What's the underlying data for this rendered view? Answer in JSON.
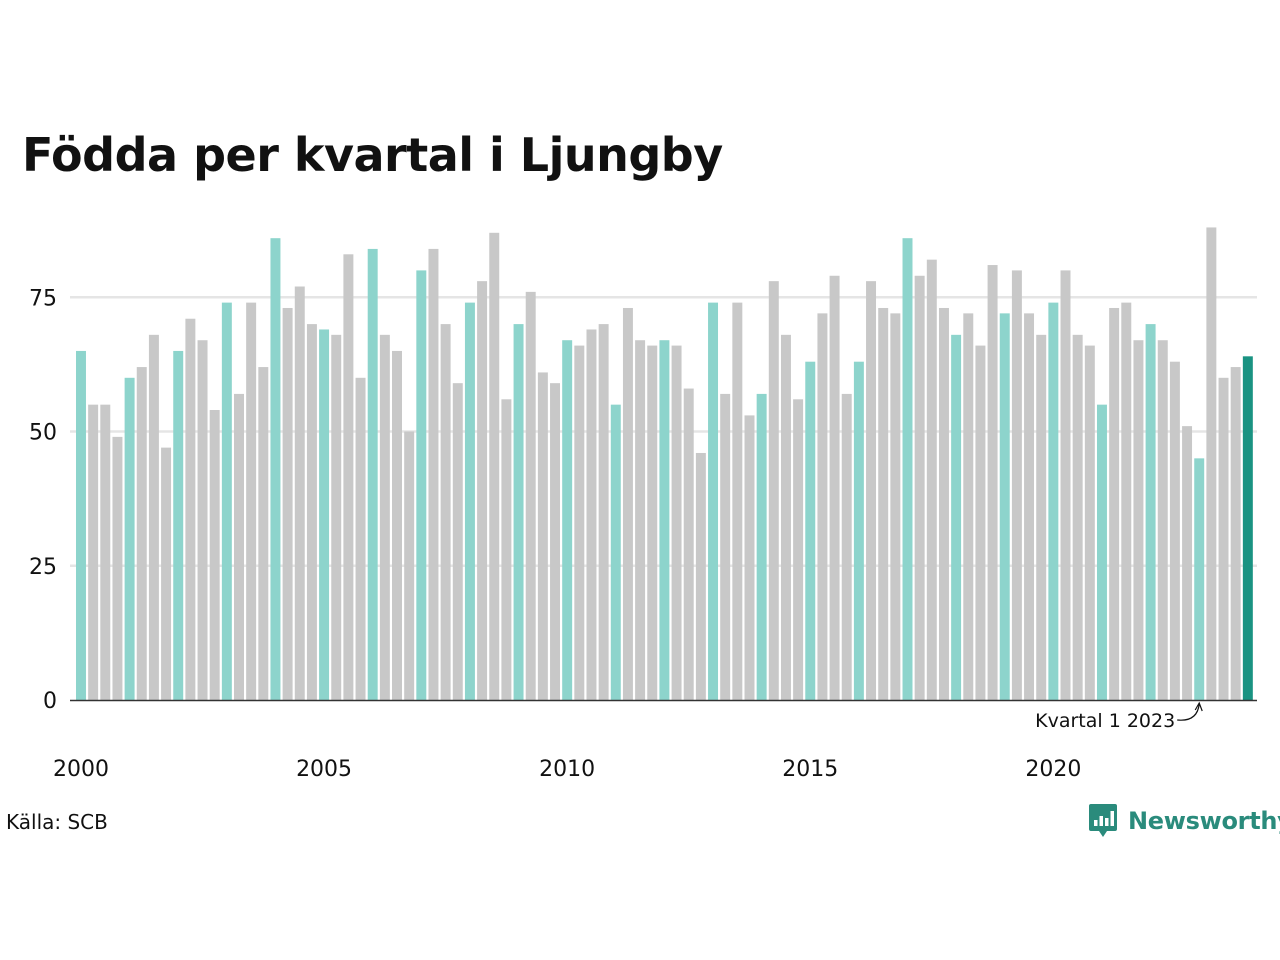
{
  "title": "Födda per kvartal i Ljungby",
  "source": "Källa: SCB",
  "brand": {
    "name": "Newsworthy",
    "icon": "newsworthy-logo-icon"
  },
  "colors": {
    "q1": "#8dd4cc",
    "other": "#c8c8c8",
    "latest": "#1a9382",
    "grid": "#e5e5e5",
    "axis": "#333333"
  },
  "chart_data": {
    "type": "bar",
    "title": "Födda per kvartal i Ljungby",
    "x_start": {
      "year": 2000,
      "quarter": 1
    },
    "x_ticks": [
      "2000",
      "2005",
      "2010",
      "2015",
      "2020"
    ],
    "y_ticks": [
      0,
      25,
      50,
      75
    ],
    "ylim": [
      0,
      90
    ],
    "grid": true,
    "highlight": "Q1 of each year; latest bar darker",
    "values": [
      65,
      55,
      55,
      49,
      60,
      62,
      68,
      47,
      65,
      71,
      67,
      54,
      74,
      57,
      74,
      62,
      86,
      73,
      77,
      70,
      69,
      68,
      83,
      60,
      84,
      68,
      65,
      50,
      80,
      84,
      70,
      59,
      74,
      78,
      87,
      56,
      70,
      76,
      61,
      59,
      67,
      66,
      69,
      70,
      55,
      73,
      67,
      66,
      67,
      66,
      58,
      46,
      74,
      57,
      74,
      53,
      57,
      78,
      68,
      56,
      63,
      72,
      79,
      57,
      63,
      78,
      73,
      72,
      86,
      79,
      82,
      73,
      68,
      72,
      66,
      81,
      72,
      80,
      72,
      68,
      74,
      80,
      68,
      66,
      55,
      73,
      74,
      67,
      70,
      67,
      63,
      51,
      45,
      88,
      60,
      62,
      64
    ],
    "annotation": {
      "text": "Kvartal 1 2023",
      "target_index": 92
    }
  }
}
